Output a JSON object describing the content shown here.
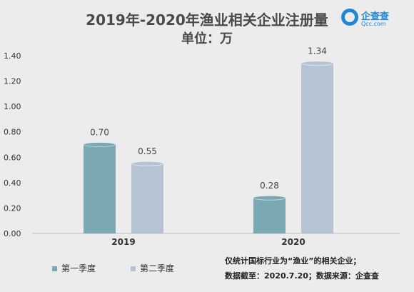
{
  "title": "2019年-2020年渔业相关企业注册量",
  "subtitle": "单位：万",
  "logo": {
    "name": "企查查",
    "url": "Qcc.com"
  },
  "notes": [
    "仅统计国标行业为“渔业”的相关企业；",
    "数据截至：2020.7.20；数据来源：企查查"
  ],
  "chart_data": {
    "type": "bar",
    "title": "2019年-2020年渔业相关企业注册量",
    "subtitle": "单位：万",
    "categories": [
      "2019",
      "2020"
    ],
    "series": [
      {
        "name": "第一季度",
        "color": "#7aa9b3",
        "values": [
          0.7,
          0.28
        ],
        "labels": [
          "0.70",
          "0.28"
        ]
      },
      {
        "name": "第二季度",
        "color": "#b6c3d2",
        "values": [
          0.55,
          1.34
        ],
        "labels": [
          "0.55",
          "1.34"
        ]
      }
    ],
    "yticks": [
      "0.00",
      "0.20",
      "0.40",
      "0.60",
      "0.80",
      "1.00",
      "1.20",
      "1.40"
    ],
    "ylim": [
      0,
      1.4
    ],
    "grid": false,
    "legend_position": "bottom-left"
  }
}
